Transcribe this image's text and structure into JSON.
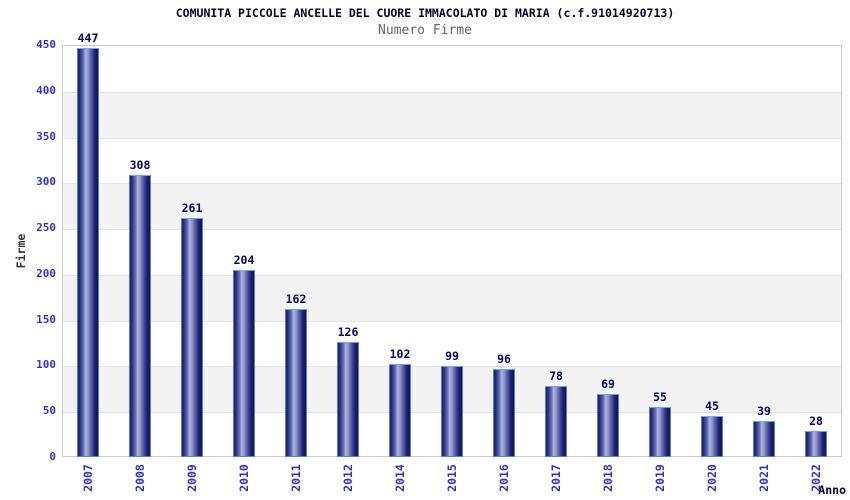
{
  "chart_data": {
    "type": "bar",
    "title": "COMUNITA PICCOLE ANCELLE DEL CUORE IMMACOLATO DI MARIA (c.f.91014920713)",
    "subtitle": "Numero Firme",
    "xlabel": "Anno",
    "ylabel": "Firme",
    "categories": [
      "2007",
      "2008",
      "2009",
      "2010",
      "2011",
      "2012",
      "2014",
      "2015",
      "2016",
      "2017",
      "2018",
      "2019",
      "2020",
      "2021",
      "2022"
    ],
    "values": [
      447,
      308,
      261,
      204,
      162,
      126,
      102,
      99,
      96,
      78,
      69,
      55,
      45,
      39,
      28
    ],
    "ylim": [
      0,
      450
    ],
    "ytick_step": 50,
    "yticks": [
      0,
      50,
      100,
      150,
      200,
      250,
      300,
      350,
      400,
      450
    ],
    "grid": "alternating horizontal bands every 50 units, light gray gridlines",
    "legend": "none",
    "value_labels": "above each bar",
    "colors": {
      "bar_border": "#4d82e0",
      "bar_dark": "#1b1b66",
      "bar_mid": "#5a64a8",
      "bar_highlight": "#aab2de",
      "axis_tick_label": "#3333cc",
      "value_label": "#000066",
      "title": "#000033",
      "subtitle": "#666666",
      "axis_label": "#333333",
      "band_gray": "#f3f3f3",
      "gridline": "#e3e3e3",
      "plot_border": "#cccccc",
      "background": "#ffffff"
    }
  }
}
